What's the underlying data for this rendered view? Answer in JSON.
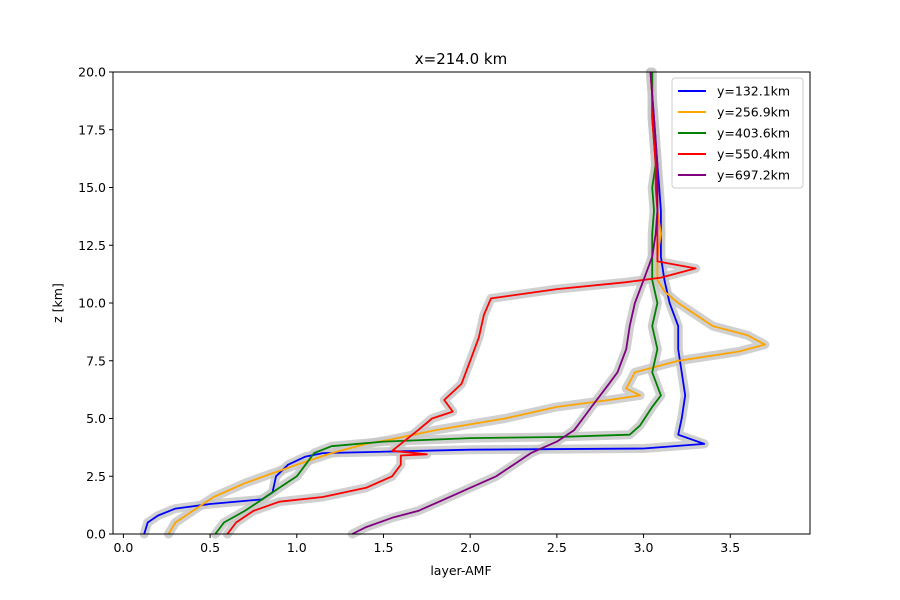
{
  "chart_data": {
    "type": "line",
    "title": "x=214.0 km",
    "xlabel": "layer-AMF",
    "ylabel": "z [km]",
    "xlim": [
      -0.06,
      3.96
    ],
    "ylim": [
      0,
      20
    ],
    "xticks": [
      0.0,
      0.5,
      1.0,
      1.5,
      2.0,
      2.5,
      3.0,
      3.5
    ],
    "xtick_labels": [
      "0.0",
      "0.5",
      "1.0",
      "1.5",
      "2.0",
      "2.5",
      "3.0",
      "3.5"
    ],
    "yticks": [
      0.0,
      2.5,
      5.0,
      7.5,
      10.0,
      12.5,
      15.0,
      17.5,
      20.0
    ],
    "ytick_labels": [
      "0.0",
      "2.5",
      "5.0",
      "7.5",
      "10.0",
      "12.5",
      "15.0",
      "17.5",
      "20.0"
    ],
    "grid": false,
    "legend_position": "top-right",
    "uncertainty_band_color": "#c8c8c8",
    "series": [
      {
        "name": "y=132.1km",
        "color": "#0000ff",
        "points": [
          [
            0.12,
            0
          ],
          [
            0.14,
            0.5
          ],
          [
            0.2,
            0.8
          ],
          [
            0.3,
            1.1
          ],
          [
            0.5,
            1.3
          ],
          [
            0.8,
            1.5
          ],
          [
            0.86,
            1.8
          ],
          [
            0.88,
            2.5
          ],
          [
            0.95,
            3.0
          ],
          [
            1.05,
            3.35
          ],
          [
            1.15,
            3.5
          ],
          [
            2.0,
            3.65
          ],
          [
            3.0,
            3.7
          ],
          [
            3.35,
            3.9
          ],
          [
            3.2,
            4.3
          ],
          [
            3.22,
            5.0
          ],
          [
            3.24,
            6.0
          ],
          [
            3.22,
            7.0
          ],
          [
            3.2,
            8.0
          ],
          [
            3.2,
            9.0
          ],
          [
            3.15,
            10.0
          ],
          [
            3.12,
            11.0
          ],
          [
            3.1,
            12.0
          ],
          [
            3.1,
            13.0
          ],
          [
            3.1,
            14.0
          ],
          [
            3.09,
            15.0
          ],
          [
            3.08,
            16.0
          ],
          [
            3.07,
            17.0
          ],
          [
            3.06,
            18.0
          ],
          [
            3.05,
            19.0
          ],
          [
            3.05,
            20.0
          ]
        ]
      },
      {
        "name": "y=256.9km",
        "color": "#ffa500",
        "points": [
          [
            0.26,
            0
          ],
          [
            0.3,
            0.5
          ],
          [
            0.4,
            1.0
          ],
          [
            0.52,
            1.6
          ],
          [
            0.7,
            2.2
          ],
          [
            0.85,
            2.6
          ],
          [
            1.0,
            3.0
          ],
          [
            1.2,
            3.5
          ],
          [
            1.4,
            3.9
          ],
          [
            1.55,
            4.1
          ],
          [
            1.8,
            4.5
          ],
          [
            2.2,
            5.0
          ],
          [
            2.5,
            5.5
          ],
          [
            2.8,
            5.8
          ],
          [
            2.98,
            6.0
          ],
          [
            2.9,
            6.3
          ],
          [
            2.95,
            7.0
          ],
          [
            3.2,
            7.5
          ],
          [
            3.55,
            7.9
          ],
          [
            3.7,
            8.2
          ],
          [
            3.6,
            8.6
          ],
          [
            3.4,
            9.0
          ],
          [
            3.3,
            9.5
          ],
          [
            3.2,
            10.0
          ],
          [
            3.12,
            10.5
          ],
          [
            3.08,
            11.0
          ],
          [
            3.08,
            12.0
          ],
          [
            3.1,
            13.0
          ],
          [
            3.08,
            14.0
          ],
          [
            3.08,
            15.0
          ],
          [
            3.07,
            16.0
          ],
          [
            3.06,
            17.0
          ],
          [
            3.05,
            18.0
          ],
          [
            3.05,
            19.0
          ],
          [
            3.04,
            20.0
          ]
        ]
      },
      {
        "name": "y=403.6km",
        "color": "#008000",
        "points": [
          [
            0.53,
            0
          ],
          [
            0.58,
            0.5
          ],
          [
            0.7,
            1.0
          ],
          [
            0.8,
            1.5
          ],
          [
            0.9,
            2.0
          ],
          [
            1.0,
            2.5
          ],
          [
            1.05,
            3.0
          ],
          [
            1.1,
            3.5
          ],
          [
            1.2,
            3.8
          ],
          [
            1.5,
            4.0
          ],
          [
            2.0,
            4.15
          ],
          [
            2.5,
            4.2
          ],
          [
            2.92,
            4.3
          ],
          [
            2.98,
            4.7
          ],
          [
            3.05,
            5.5
          ],
          [
            3.1,
            6.0
          ],
          [
            3.05,
            7.0
          ],
          [
            3.08,
            8.0
          ],
          [
            3.05,
            9.0
          ],
          [
            3.08,
            10.0
          ],
          [
            3.05,
            11.0
          ],
          [
            3.05,
            12.0
          ],
          [
            3.05,
            13.0
          ],
          [
            3.06,
            14.0
          ],
          [
            3.05,
            15.0
          ],
          [
            3.07,
            16.0
          ],
          [
            3.06,
            17.0
          ],
          [
            3.05,
            18.0
          ],
          [
            3.05,
            19.0
          ],
          [
            3.05,
            20.0
          ]
        ]
      },
      {
        "name": "y=550.4km",
        "color": "#ff0000",
        "points": [
          [
            0.6,
            0
          ],
          [
            0.65,
            0.5
          ],
          [
            0.75,
            1.0
          ],
          [
            0.9,
            1.4
          ],
          [
            1.15,
            1.6
          ],
          [
            1.4,
            2.0
          ],
          [
            1.55,
            2.5
          ],
          [
            1.6,
            3.0
          ],
          [
            1.6,
            3.4
          ],
          [
            1.75,
            3.45
          ],
          [
            1.55,
            3.6
          ],
          [
            1.7,
            4.5
          ],
          [
            1.78,
            5.0
          ],
          [
            1.9,
            5.3
          ],
          [
            1.85,
            5.8
          ],
          [
            1.95,
            6.5
          ],
          [
            2.0,
            7.5
          ],
          [
            2.05,
            8.5
          ],
          [
            2.08,
            9.5
          ],
          [
            2.12,
            10.2
          ],
          [
            2.5,
            10.6
          ],
          [
            2.9,
            10.9
          ],
          [
            3.1,
            11.1
          ],
          [
            3.3,
            11.5
          ],
          [
            3.08,
            11.8
          ],
          [
            3.08,
            12.5
          ],
          [
            3.08,
            14.0
          ],
          [
            3.07,
            15.0
          ],
          [
            3.07,
            16.0
          ],
          [
            3.06,
            17.0
          ],
          [
            3.05,
            18.0
          ],
          [
            3.05,
            19.0
          ],
          [
            3.04,
            20.0
          ]
        ]
      },
      {
        "name": "y=697.2km",
        "color": "#800080",
        "points": [
          [
            1.32,
            0
          ],
          [
            1.4,
            0.3
          ],
          [
            1.55,
            0.7
          ],
          [
            1.7,
            1.0
          ],
          [
            1.85,
            1.5
          ],
          [
            2.0,
            2.0
          ],
          [
            2.15,
            2.5
          ],
          [
            2.25,
            3.0
          ],
          [
            2.35,
            3.5
          ],
          [
            2.5,
            4.0
          ],
          [
            2.6,
            4.5
          ],
          [
            2.65,
            5.0
          ],
          [
            2.7,
            5.5
          ],
          [
            2.75,
            6.0
          ],
          [
            2.8,
            6.5
          ],
          [
            2.85,
            7.0
          ],
          [
            2.9,
            8.0
          ],
          [
            2.92,
            9.0
          ],
          [
            2.95,
            10.0
          ],
          [
            3.0,
            11.0
          ],
          [
            3.05,
            12.0
          ],
          [
            3.07,
            13.0
          ],
          [
            3.08,
            14.0
          ],
          [
            3.08,
            15.0
          ],
          [
            3.08,
            16.0
          ],
          [
            3.07,
            17.0
          ],
          [
            3.06,
            18.0
          ],
          [
            3.05,
            19.0
          ],
          [
            3.04,
            20.0
          ]
        ]
      }
    ]
  }
}
